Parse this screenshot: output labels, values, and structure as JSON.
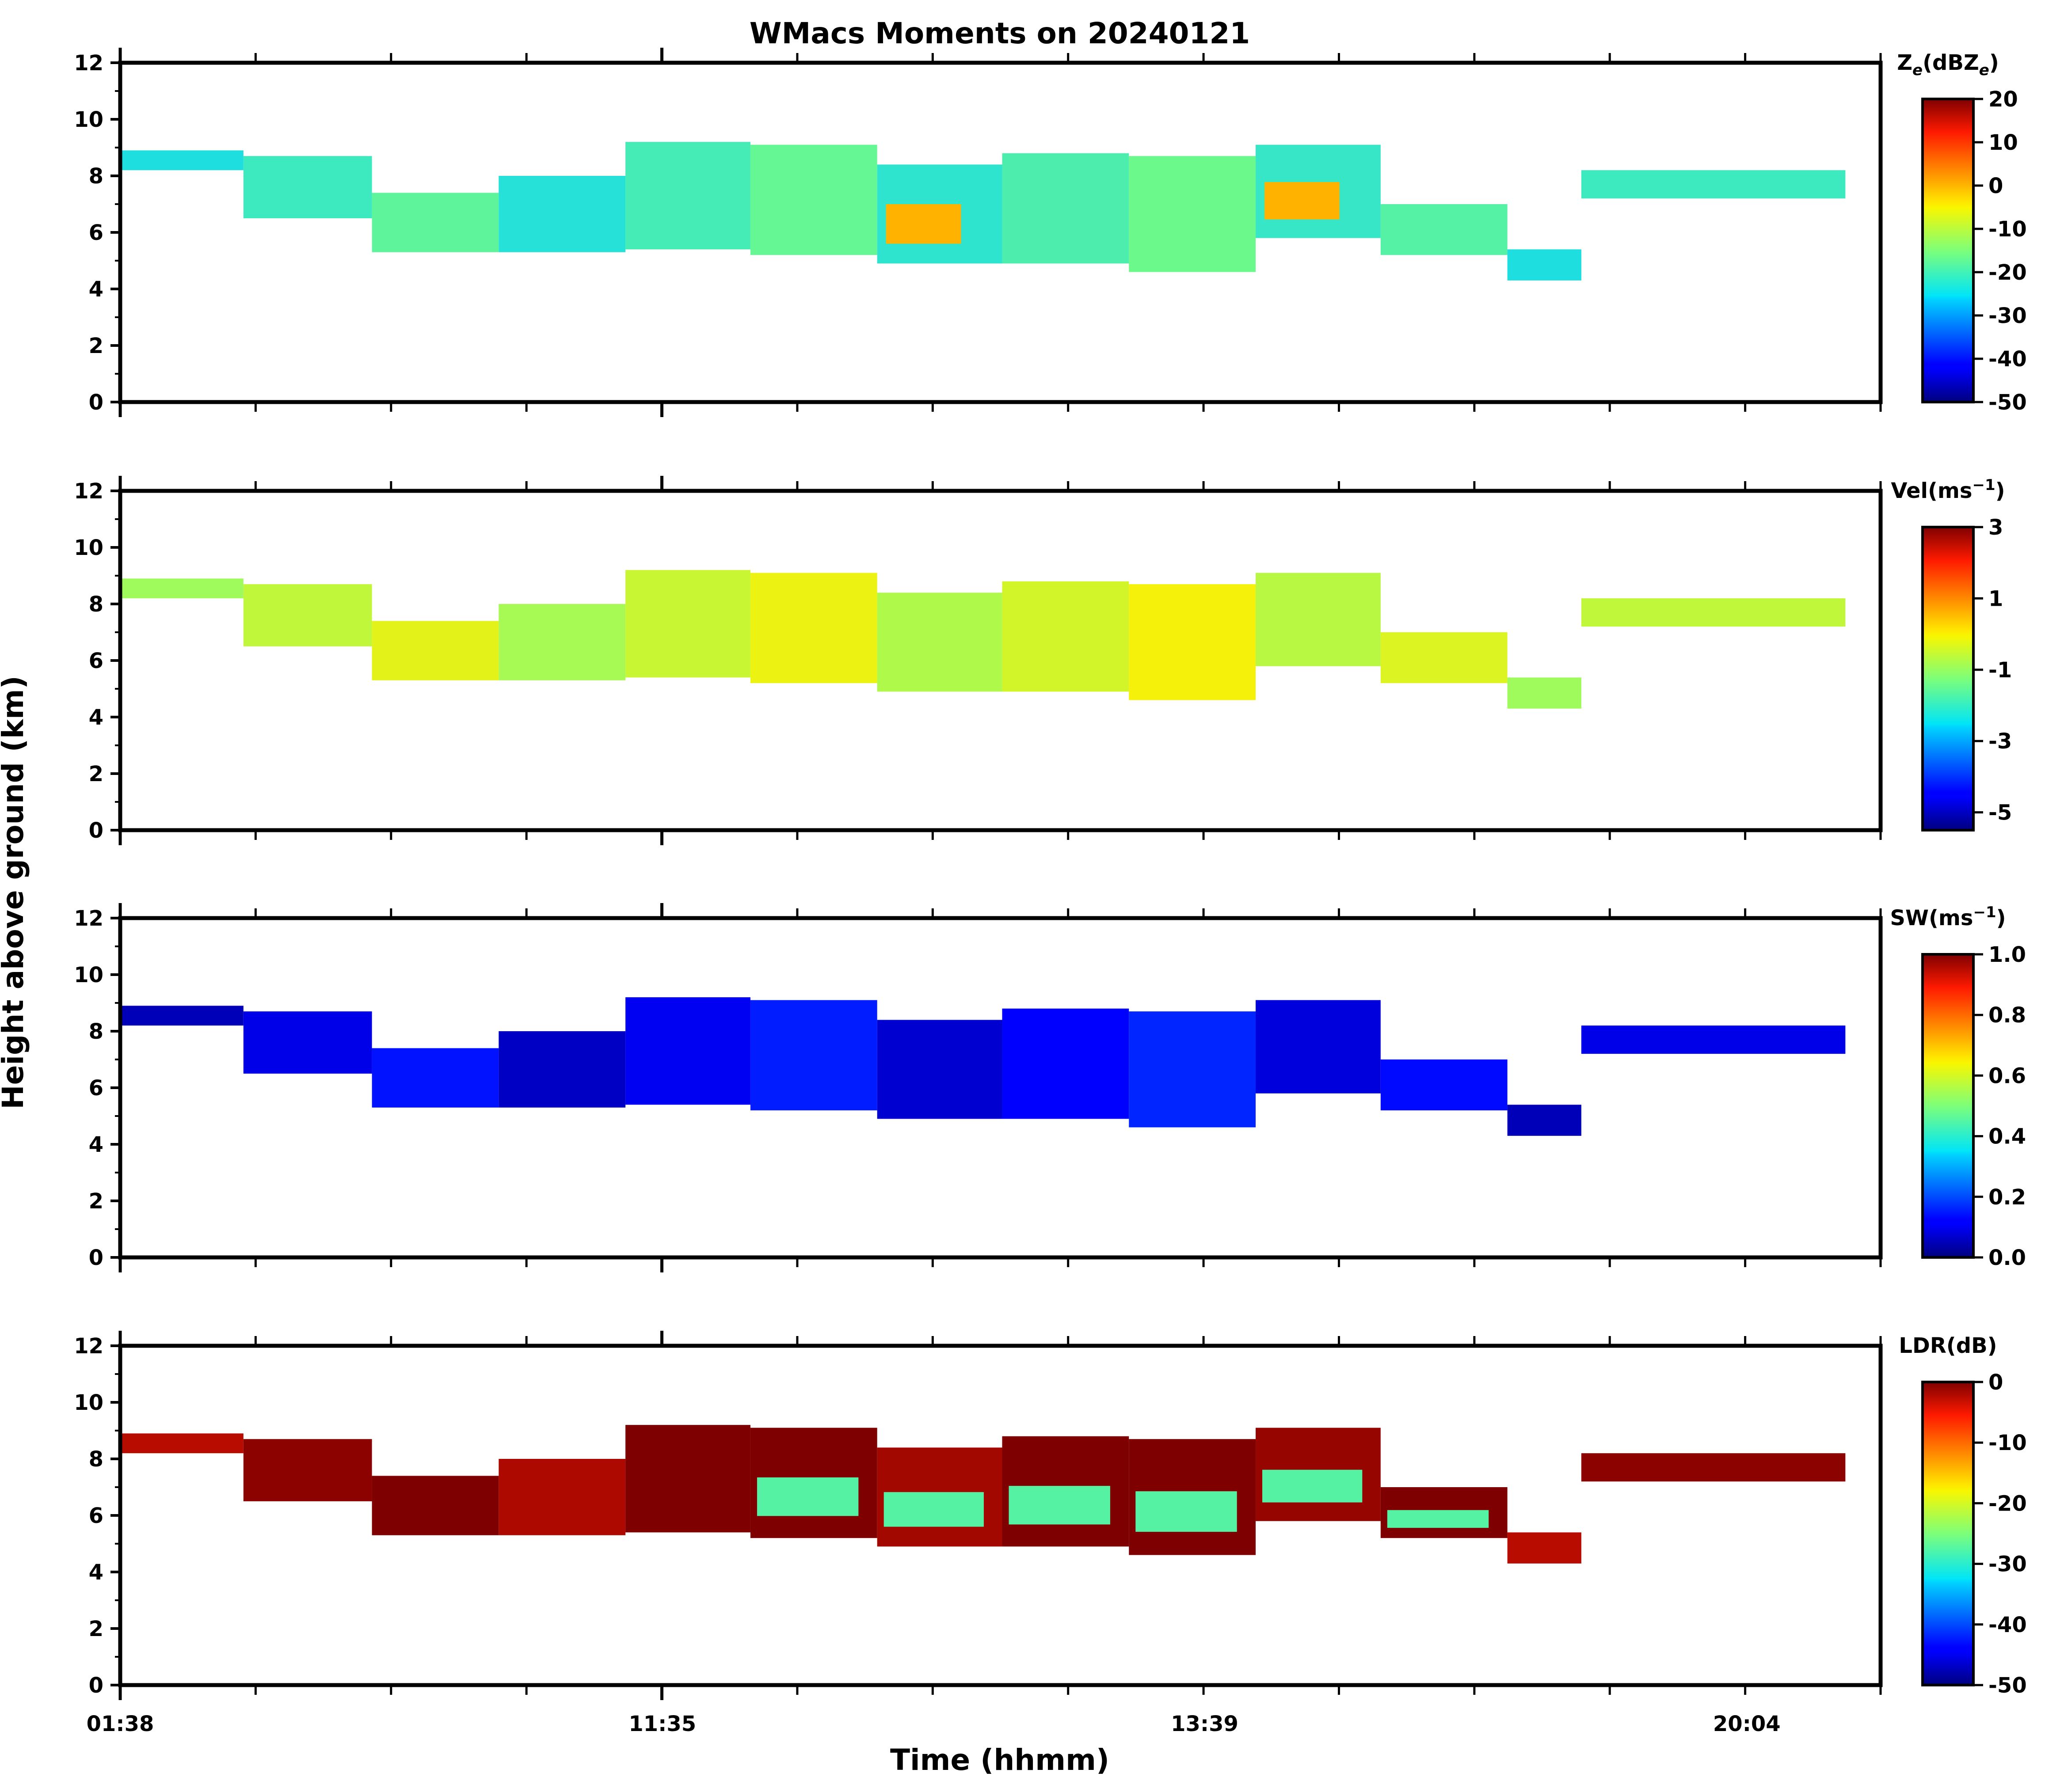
{
  "chart_data": {
    "type": "heatmap",
    "title": "WMacs Moments on 20240121",
    "xlabel": "Time (hhmm)",
    "ylabel": "Height above ground (km)",
    "x_tick_labels": [
      "01:38",
      "11:35",
      "13:39",
      "20:04"
    ],
    "y_ticks": [
      0,
      2,
      4,
      6,
      8,
      10,
      12
    ],
    "ylim": [
      0,
      12
    ],
    "panels": [
      {
        "name": "reflectivity",
        "label": "Z",
        "label_sub": "e",
        "label_unit": "(dBZ",
        "label_unit_sub": "e",
        "label_close": ")",
        "colorbar_ticks": [
          "20",
          "10",
          "0",
          "-10",
          "-20",
          "-30",
          "-40",
          "-50"
        ],
        "colorbar_range": [
          -50,
          20
        ],
        "dominant_value": -20
      },
      {
        "name": "velocity",
        "label": "Vel",
        "label_unit": "(ms",
        "label_unit_sup": "−1",
        "label_close": ")",
        "colorbar_ticks": [
          "3",
          "1",
          "-1",
          "-3",
          "-5"
        ],
        "colorbar_range": [
          -5.5,
          3
        ],
        "dominant_value": -0.5
      },
      {
        "name": "spectrum-width",
        "label": "SW",
        "label_unit": "(ms",
        "label_unit_sup": "−1",
        "label_close": ")",
        "colorbar_ticks": [
          "1.0",
          "0.8",
          "0.6",
          "0.4",
          "0.2",
          "0.0"
        ],
        "colorbar_range": [
          0,
          1
        ],
        "dominant_value": 0.1
      },
      {
        "name": "ldr",
        "label": "LDR",
        "label_unit": "(dB)",
        "colorbar_ticks": [
          "0",
          "-10",
          "-20",
          "-30",
          "-40",
          "-50"
        ],
        "colorbar_range": [
          -50,
          0
        ],
        "dominant_value": 0
      }
    ],
    "cloud_layer": {
      "description_units": "fraction of time axis, km height",
      "segments": [
        {
          "t0": 0.0,
          "t1": 0.07,
          "bottom": 8.2,
          "top": 8.9
        },
        {
          "t0": 0.07,
          "t1": 0.143,
          "bottom": 6.5,
          "top": 8.7
        },
        {
          "t0": 0.143,
          "t1": 0.215,
          "bottom": 5.3,
          "top": 7.4
        },
        {
          "t0": 0.215,
          "t1": 0.287,
          "bottom": 5.3,
          "top": 8.0
        },
        {
          "t0": 0.287,
          "t1": 0.358,
          "bottom": 5.4,
          "top": 9.2
        },
        {
          "t0": 0.358,
          "t1": 0.43,
          "bottom": 5.2,
          "top": 9.1
        },
        {
          "t0": 0.43,
          "t1": 0.501,
          "bottom": 4.9,
          "top": 8.4
        },
        {
          "t0": 0.501,
          "t1": 0.573,
          "bottom": 4.9,
          "top": 8.8
        },
        {
          "t0": 0.573,
          "t1": 0.645,
          "bottom": 4.6,
          "top": 8.7
        },
        {
          "t0": 0.645,
          "t1": 0.716,
          "bottom": 5.8,
          "top": 9.1
        },
        {
          "t0": 0.716,
          "t1": 0.788,
          "bottom": 5.2,
          "top": 7.0
        },
        {
          "t0": 0.788,
          "t1": 0.83,
          "bottom": 4.3,
          "top": 5.4
        },
        {
          "t0": 0.83,
          "t1": 0.98,
          "bottom": 7.2,
          "top": 8.2
        }
      ]
    }
  }
}
